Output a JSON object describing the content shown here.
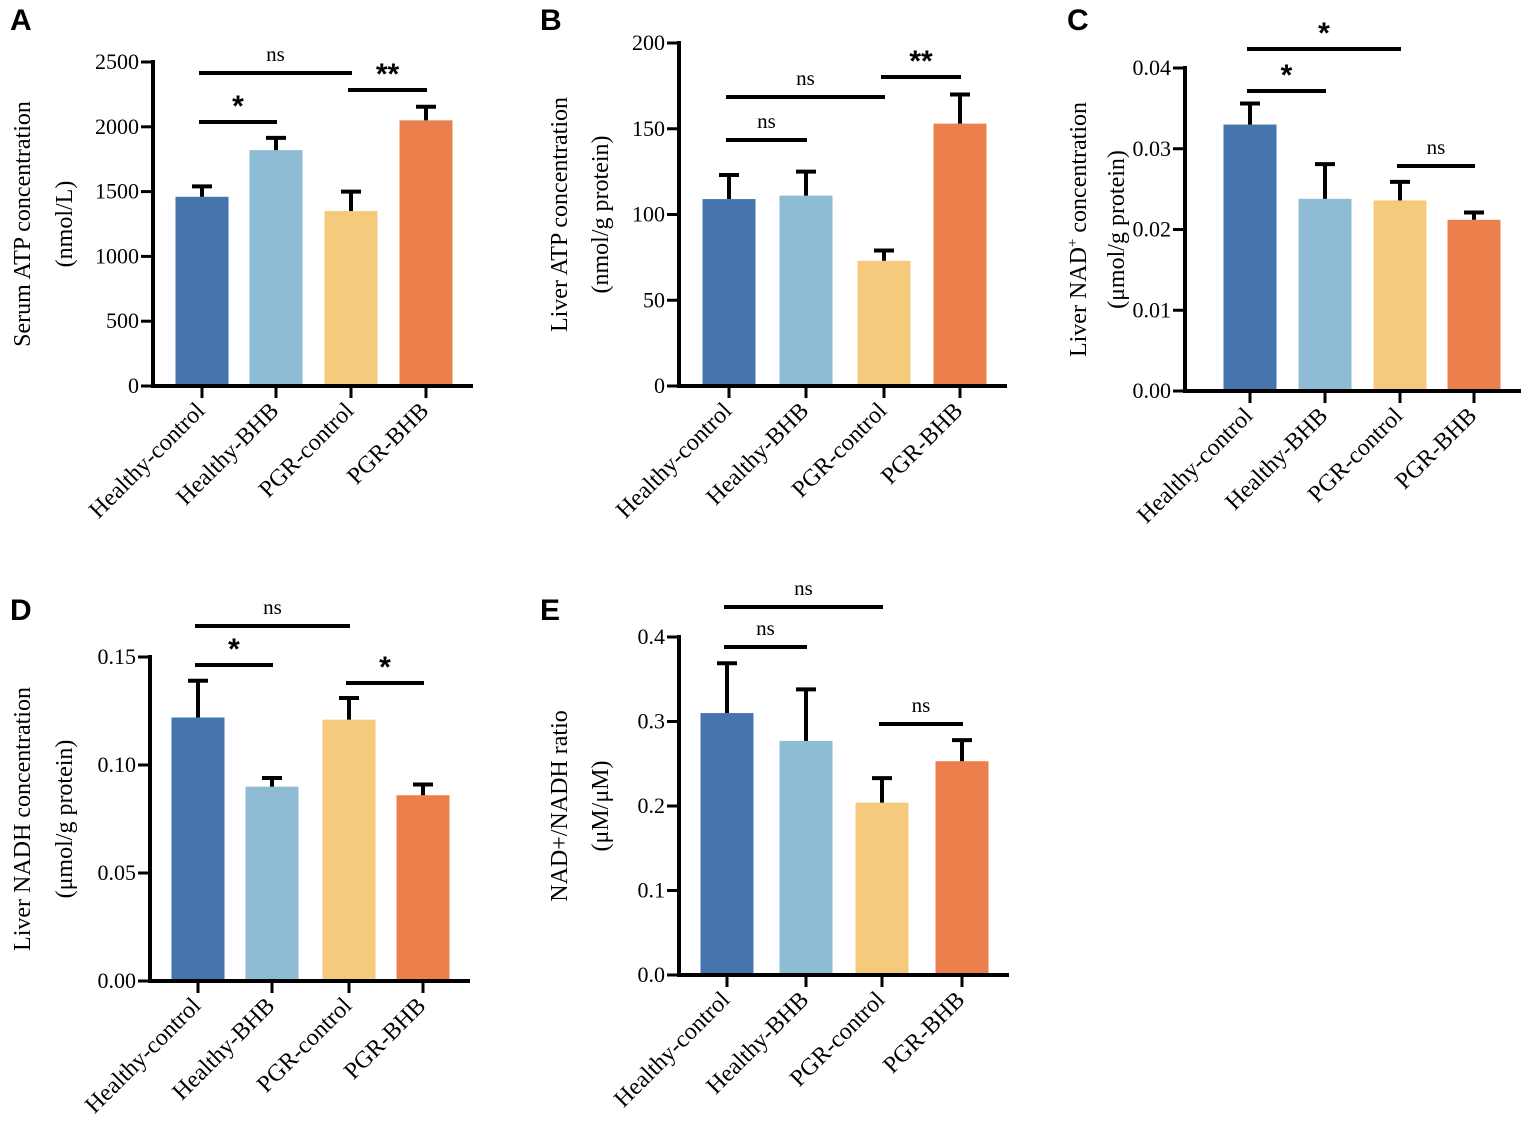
{
  "colors": [
    "#4675ad",
    "#8ebcd5",
    "#f6ca7c",
    "#ec804c"
  ],
  "chart_data": [
    {
      "panel": "A",
      "type": "bar",
      "categories": [
        "Healthy-control",
        "Healthy-BHB",
        "PGR-control",
        "PGR-BHB"
      ],
      "values": [
        1460,
        1820,
        1350,
        2050
      ],
      "errors": [
        80,
        95,
        150,
        105
      ],
      "ylabel": [
        "Serum ATP concentration",
        "(nmol/L)"
      ],
      "ylim": [
        0,
        2500
      ],
      "yticks": [
        0,
        500,
        1000,
        1500,
        2000,
        2500
      ],
      "ytick_labels": [
        "0",
        "500",
        "1000",
        "1500",
        "2000",
        "2500"
      ],
      "significance": [
        {
          "from": 0,
          "to": 1,
          "label": "*"
        },
        {
          "from": 0,
          "to": 2,
          "label": "ns"
        },
        {
          "from": 2,
          "to": 3,
          "label": "**"
        }
      ]
    },
    {
      "panel": "B",
      "type": "bar",
      "categories": [
        "Healthy-control",
        "Healthy-BHB",
        "PGR-control",
        "PGR-BHB"
      ],
      "values": [
        109,
        111,
        73,
        153
      ],
      "errors": [
        14,
        14,
        6,
        17
      ],
      "ylabel": [
        "Liver ATP concentration",
        "(nmol/g protein)"
      ],
      "ylim": [
        0,
        200
      ],
      "yticks": [
        0,
        50,
        100,
        150,
        200
      ],
      "ytick_labels": [
        "0",
        "50",
        "100",
        "150",
        "200"
      ],
      "significance": [
        {
          "from": 0,
          "to": 1,
          "label": "ns"
        },
        {
          "from": 0,
          "to": 2,
          "label": "ns"
        },
        {
          "from": 2,
          "to": 3,
          "label": "**"
        }
      ]
    },
    {
      "panel": "C",
      "type": "bar",
      "categories": [
        "Healthy-control",
        "Healthy-BHB",
        "PGR-control",
        "PGR-BHB"
      ],
      "values": [
        0.033,
        0.0238,
        0.0236,
        0.0212
      ],
      "errors": [
        0.0026,
        0.0043,
        0.0023,
        0.0009
      ],
      "ylabel": [
        "Liver NAD",
        "+",
        " concentration",
        "(μmol/g protein)"
      ],
      "ylim": [
        0,
        0.04
      ],
      "yticks": [
        0,
        0.01,
        0.02,
        0.03,
        0.04
      ],
      "ytick_labels": [
        "0.00",
        "0.01",
        "0.02",
        "0.03",
        "0.04"
      ],
      "significance": [
        {
          "from": 0,
          "to": 1,
          "label": "*"
        },
        {
          "from": 0,
          "to": 2,
          "label": "*"
        },
        {
          "from": 2,
          "to": 3,
          "label": "ns"
        }
      ]
    },
    {
      "panel": "D",
      "type": "bar",
      "categories": [
        "Healthy-control",
        "Healthy-BHB",
        "PGR-control",
        "PGR-BHB"
      ],
      "values": [
        0.122,
        0.09,
        0.121,
        0.086
      ],
      "errors": [
        0.017,
        0.004,
        0.01,
        0.005
      ],
      "ylabel": [
        "Liver NADH concentration",
        "(μmol/g protein)"
      ],
      "ylim": [
        0,
        0.15
      ],
      "yticks": [
        0,
        0.05,
        0.1,
        0.15
      ],
      "ytick_labels": [
        "0.00",
        "0.05",
        "0.10",
        "0.15"
      ],
      "significance": [
        {
          "from": 0,
          "to": 1,
          "label": "*"
        },
        {
          "from": 0,
          "to": 2,
          "label": "ns"
        },
        {
          "from": 2,
          "to": 3,
          "label": "*"
        }
      ]
    },
    {
      "panel": "E",
      "type": "bar",
      "categories": [
        "Healthy-control",
        "Healthy-BHB",
        "PGR-control",
        "PGR-BHB"
      ],
      "values": [
        0.31,
        0.277,
        0.204,
        0.253
      ],
      "errors": [
        0.059,
        0.061,
        0.029,
        0.025
      ],
      "ylabel": [
        "NAD+/NADH ratio",
        "(μM/μM)"
      ],
      "ylim": [
        0,
        0.4
      ],
      "yticks": [
        0,
        0.1,
        0.2,
        0.3,
        0.4
      ],
      "ytick_labels": [
        "0.0",
        "0.1",
        "0.2",
        "0.3",
        "0.4"
      ],
      "significance": [
        {
          "from": 0,
          "to": 1,
          "label": "ns"
        },
        {
          "from": 0,
          "to": 2,
          "label": "ns"
        },
        {
          "from": 2,
          "to": 3,
          "label": "ns"
        }
      ]
    }
  ]
}
